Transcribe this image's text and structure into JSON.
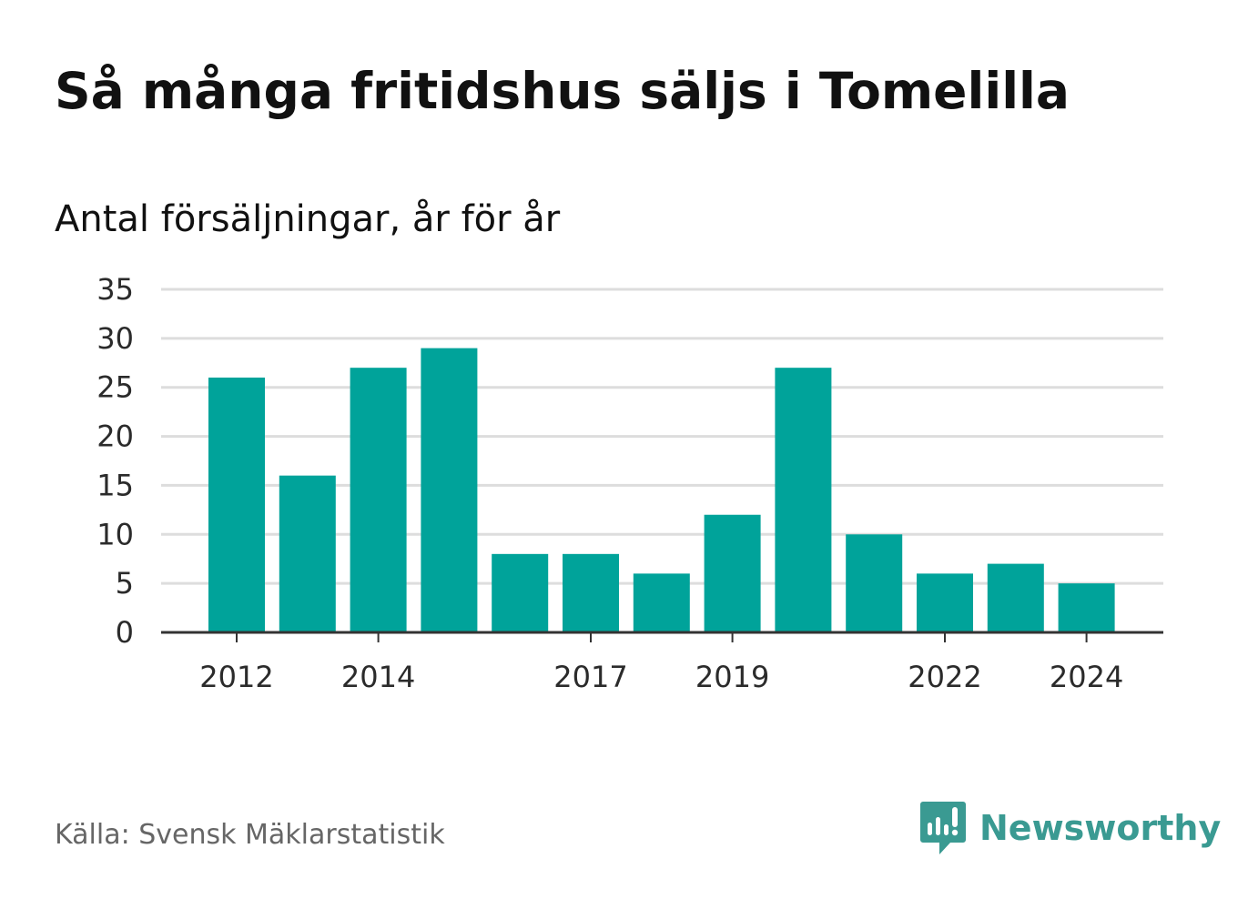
{
  "title": "Så många fritidshus säljs i Tomelilla",
  "subtitle": "Antal försäljningar, år för år",
  "source": "Källa: Svensk Mäklarstatistik",
  "brand": "Newsworthy",
  "colors": {
    "bar": "#00a39a",
    "brand": "#3a9a92",
    "grid": "#dddddd",
    "axis": "#333333"
  },
  "chart_data": {
    "type": "bar",
    "categories": [
      2012,
      2013,
      2014,
      2015,
      2016,
      2017,
      2018,
      2019,
      2020,
      2021,
      2022,
      2023,
      2024
    ],
    "values": [
      26,
      16,
      27,
      29,
      8,
      8,
      6,
      12,
      27,
      10,
      6,
      7,
      5
    ],
    "x_tick_labels": [
      "2012",
      "2014",
      "2017",
      "2019",
      "2022",
      "2024"
    ],
    "y_tick_labels": [
      "0",
      "5",
      "10",
      "15",
      "20",
      "25",
      "30",
      "35"
    ],
    "ylim": [
      0,
      35
    ],
    "grid": true,
    "xlabel": "",
    "ylabel": ""
  }
}
